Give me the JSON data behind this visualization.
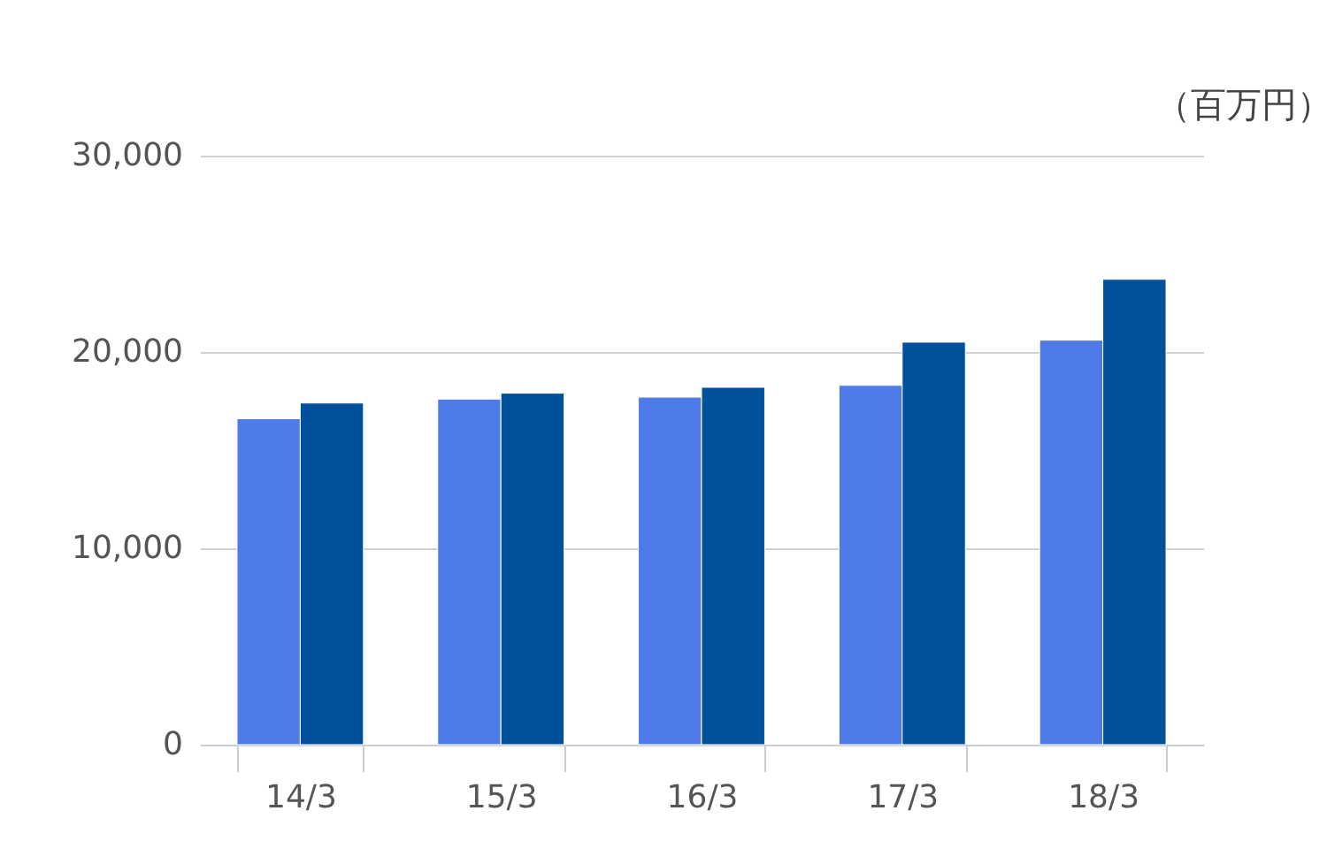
{
  "chart_data": {
    "type": "bar",
    "categories": [
      "14/3",
      "15/3",
      "16/3",
      "17/3",
      "18/3"
    ],
    "series": [
      {
        "color": "#4f7be8",
        "values": [
          16600,
          17600,
          17700,
          18300,
          20600
        ]
      },
      {
        "color": "#00509c",
        "values": [
          17400,
          17900,
          18200,
          20500,
          23700
        ]
      }
    ],
    "ylim": [
      0,
      30000
    ],
    "yticks": [
      0,
      {
        "value": 10000,
        "label": "10,000"
      },
      {
        "value": 20000,
        "label": "20,000"
      },
      {
        "value": 30000,
        "label": "30,000"
      }
    ],
    "grid": "y",
    "legend": false,
    "annotations": [
      "（百万円）"
    ]
  }
}
